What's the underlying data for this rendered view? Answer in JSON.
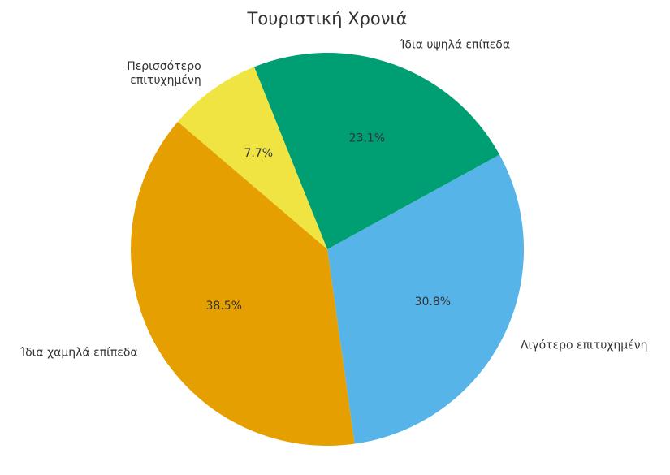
{
  "chart_data": {
    "type": "pie",
    "title": "Τουριστική Χρονιά",
    "categories": [
      "Λιγότερο επιτυχημένη",
      "Ίδια υψηλά επίπεδα",
      "Περισσότερο\nεπιτυχημένη",
      "Ίδια χαμηλά επίπεδα"
    ],
    "values": [
      30.8,
      23.1,
      7.7,
      38.5
    ],
    "value_labels": [
      "30.8%",
      "23.1%",
      "7.7%",
      "38.5%"
    ],
    "colors": [
      "#56b4e9",
      "#009e73",
      "#f0e442",
      "#e69f00"
    ]
  }
}
